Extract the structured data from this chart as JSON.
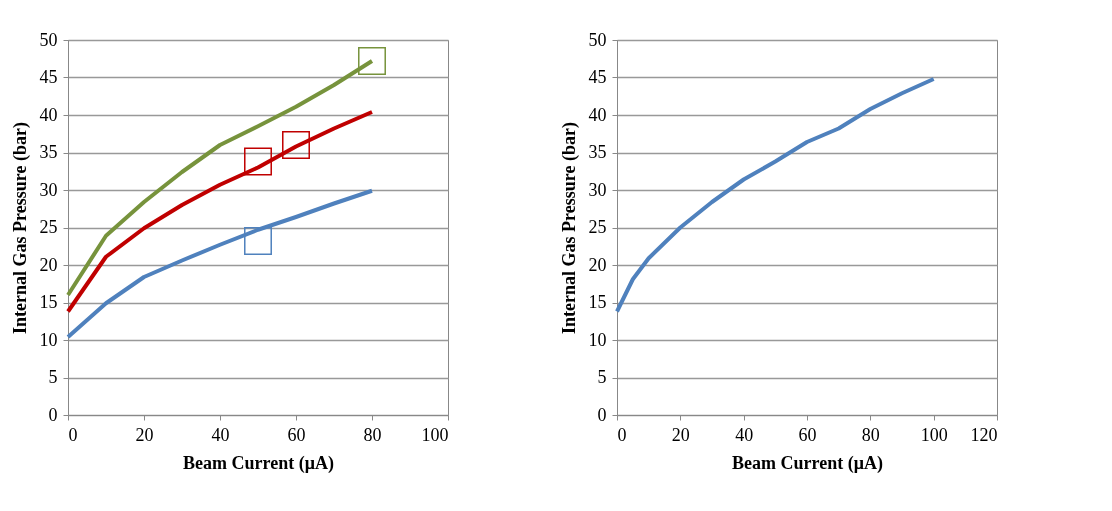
{
  "chart_data": [
    {
      "type": "line",
      "xlabel": "Beam Current (μA)",
      "ylabel": "Internal Gas Pressure (bar)",
      "xlim": [
        0,
        100
      ],
      "xticks": [
        0,
        20,
        40,
        60,
        80,
        100
      ],
      "ylim": [
        0,
        50
      ],
      "yticks": [
        0,
        5,
        10,
        15,
        20,
        25,
        30,
        35,
        40,
        45,
        50
      ],
      "grid": "y",
      "series": [
        {
          "marker": "none",
          "color": "#4f81bd",
          "x": [
            0,
            10,
            20,
            30,
            40,
            50,
            60,
            70,
            80
          ],
          "values": [
            10.4,
            14.9,
            18.4,
            20.6,
            22.7,
            24.7,
            26.4,
            28.2,
            29.9
          ]
        },
        {
          "marker": "none",
          "color": "#c00000",
          "x": [
            0,
            10,
            20,
            30,
            40,
            50,
            60,
            70,
            80
          ],
          "values": [
            13.8,
            21.1,
            24.9,
            28,
            30.7,
            33,
            35.8,
            38.2,
            40.4
          ]
        },
        {
          "marker": "none",
          "color": "#77933c",
          "x": [
            0,
            10,
            20,
            30,
            40,
            50,
            60,
            70,
            80
          ],
          "values": [
            16,
            23.9,
            28.4,
            32.4,
            36,
            38.5,
            41.1,
            44,
            47.2
          ]
        },
        {
          "type": "scatter",
          "marker": "square",
          "color": "#4f81bd",
          "x": [
            50
          ],
          "values": [
            23.2
          ]
        },
        {
          "type": "scatter",
          "marker": "square",
          "color": "#c00000",
          "x": [
            50,
            60
          ],
          "values": [
            33.8,
            36
          ]
        },
        {
          "type": "scatter",
          "marker": "square",
          "color": "#77933c",
          "x": [
            80
          ],
          "values": [
            47.2
          ]
        }
      ]
    },
    {
      "type": "line",
      "xlabel": "Beam Current (μA)",
      "ylabel": "Internal Gas Pressure (bar)",
      "xlim": [
        0,
        120
      ],
      "xticks": [
        0,
        20,
        40,
        60,
        80,
        100,
        120
      ],
      "ylim": [
        0,
        50
      ],
      "yticks": [
        0,
        5,
        10,
        15,
        20,
        25,
        30,
        35,
        40,
        45,
        50
      ],
      "grid": "y",
      "series": [
        {
          "marker": "none",
          "color": "#4f81bd",
          "x": [
            0,
            5,
            10,
            20,
            30,
            40,
            50,
            60,
            70,
            80,
            90,
            100
          ],
          "values": [
            13.8,
            18.1,
            20.9,
            25,
            28.4,
            31.4,
            33.8,
            36.4,
            38.2,
            40.8,
            42.9,
            44.8
          ]
        }
      ]
    }
  ]
}
